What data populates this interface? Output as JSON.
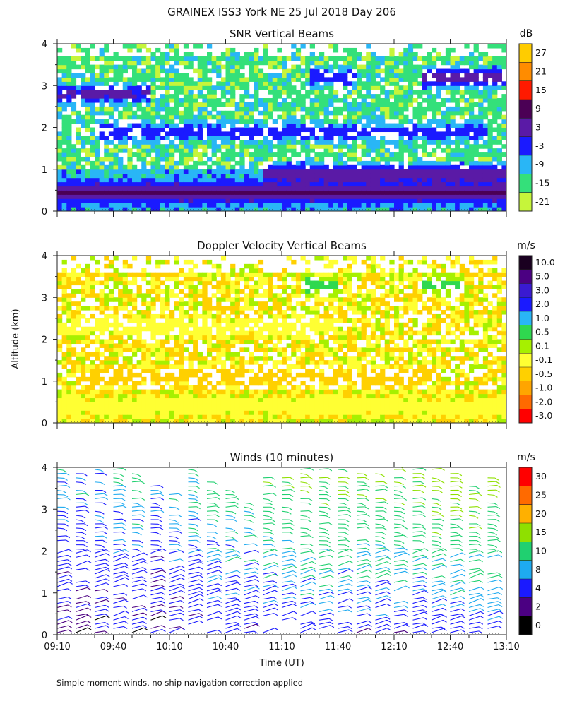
{
  "title": "GRAINEX ISS3 York NE  25 Jul 2018 Day 206",
  "footnote": "Simple moment winds, no ship navigation correction applied",
  "chart_data": [
    {
      "id": "snr",
      "type": "heatmap",
      "title": "SNR Vertical Beams",
      "xlabel": "",
      "ylabel": "",
      "xlim": [
        "09:10",
        "13:10"
      ],
      "ylim": [
        0,
        4
      ],
      "y_ticks": [
        "0",
        "1",
        "2",
        "3",
        "4"
      ],
      "colorbar": {
        "unit": "dB",
        "labels": [
          "27",
          "21",
          "15",
          "9",
          "3",
          "-3",
          "-9",
          "-15",
          "-21"
        ],
        "colors": [
          "#ffcc00",
          "#ff8c00",
          "#ff1a00",
          "#4b0055",
          "#5a1aa6",
          "#1a1aff",
          "#29b6f6",
          "#34e07a",
          "#c6f53a"
        ]
      },
      "layers": [
        {
          "altitude_km": 0.45,
          "snr_db": 6,
          "extent": [
            "09:10",
            "13:10"
          ]
        },
        {
          "altitude_km": 0.9,
          "snr_db": 6,
          "extent": [
            "11:00",
            "13:10"
          ]
        },
        {
          "altitude_km": 1.9,
          "snr_db": 0,
          "extent": [
            "09:30",
            "13:00"
          ]
        },
        {
          "altitude_km": 2.8,
          "snr_db": 3,
          "extent": [
            "09:10",
            "10:00"
          ]
        },
        {
          "altitude_km": 3.2,
          "snr_db": 0,
          "extent": [
            "11:25",
            "11:50"
          ]
        },
        {
          "altitude_km": 3.2,
          "snr_db": 6,
          "extent": [
            "12:25",
            "13:10"
          ]
        }
      ]
    },
    {
      "id": "doppler",
      "type": "heatmap",
      "title": "Doppler Velocity Vertical Beams",
      "xlabel": "",
      "ylabel": "Altitude (km)",
      "xlim": [
        "09:10",
        "13:10"
      ],
      "ylim": [
        0,
        4
      ],
      "y_ticks": [
        "0",
        "1",
        "2",
        "3",
        "4"
      ],
      "colorbar": {
        "unit": "m/s",
        "labels": [
          "10.0",
          "5.0",
          "3.0",
          "2.0",
          "1.0",
          "0.5",
          "0.1",
          "-0.1",
          "-0.5",
          "-1.0",
          "-2.0",
          "-3.0"
        ],
        "colors": [
          "#1a0020",
          "#4b0082",
          "#3a1ad1",
          "#1a1aff",
          "#29b6f6",
          "#2fd84f",
          "#a6f000",
          "#ffff33",
          "#ffd000",
          "#ffa500",
          "#ff6a00",
          "#ff0000"
        ]
      },
      "layers": [
        {
          "altitude_km": 0.4,
          "velocity_ms": -0.1,
          "extent": [
            "09:10",
            "13:10"
          ]
        },
        {
          "altitude_km": 1.1,
          "velocity_ms": -0.5,
          "extent": [
            "09:20",
            "12:30"
          ]
        },
        {
          "altitude_km": 2.3,
          "velocity_ms": -0.1,
          "extent": [
            "09:10",
            "11:40"
          ]
        },
        {
          "altitude_km": 3.3,
          "velocity_ms": 0.5,
          "extent": [
            "11:20",
            "11:40"
          ]
        },
        {
          "altitude_km": 3.3,
          "velocity_ms": 0.5,
          "extent": [
            "12:25",
            "12:45"
          ]
        }
      ]
    },
    {
      "id": "winds",
      "type": "scatter",
      "title": "Winds (10 minutes)",
      "xlabel": "Time (UT)",
      "ylabel": "",
      "xlim": [
        "09:10",
        "13:10"
      ],
      "ylim": [
        0,
        4
      ],
      "x_ticks": [
        "09:10",
        "09:40",
        "10:10",
        "10:40",
        "11:10",
        "11:40",
        "12:10",
        "12:40",
        "13:10"
      ],
      "y_ticks": [
        "0",
        "1",
        "2",
        "3",
        "4"
      ],
      "colorbar": {
        "unit": "m/s",
        "labels": [
          "30",
          "25",
          "20",
          "15",
          "10",
          "8",
          "4",
          "2",
          "0"
        ],
        "colors": [
          "#ff0000",
          "#ff6a00",
          "#ffb000",
          "#8fe000",
          "#20d070",
          "#1eaaf0",
          "#1a1aff",
          "#4b0082",
          "#000000"
        ]
      },
      "profiles_interval_min": 10,
      "profiles": [
        {
          "time": "09:10",
          "top_km": 4.1,
          "speed_ms": 6
        },
        {
          "time": "09:20",
          "top_km": 4.1,
          "speed_ms": 6
        },
        {
          "time": "09:30",
          "top_km": 4.1,
          "speed_ms": 6
        },
        {
          "time": "09:40",
          "top_km": 4.0,
          "speed_ms": 7
        },
        {
          "time": "09:50",
          "top_km": 4.2,
          "speed_ms": 7
        },
        {
          "time": "10:00",
          "top_km": 3.6,
          "speed_ms": 6
        },
        {
          "time": "10:10",
          "top_km": 3.4,
          "speed_ms": 7
        },
        {
          "time": "10:20",
          "top_km": 4.1,
          "speed_ms": 8
        },
        {
          "time": "10:30",
          "top_km": 3.7,
          "speed_ms": 9
        },
        {
          "time": "10:40",
          "top_km": 3.5,
          "speed_ms": 9
        },
        {
          "time": "10:50",
          "top_km": 3.2,
          "speed_ms": 9
        },
        {
          "time": "11:00",
          "top_km": 3.8,
          "speed_ms": 10
        },
        {
          "time": "11:10",
          "top_km": 3.8,
          "speed_ms": 10
        },
        {
          "time": "11:20",
          "top_km": 4.1,
          "speed_ms": 11
        },
        {
          "time": "11:30",
          "top_km": 4.1,
          "speed_ms": 11
        },
        {
          "time": "11:40",
          "top_km": 4.0,
          "speed_ms": 11
        },
        {
          "time": "11:50",
          "top_km": 3.9,
          "speed_ms": 11
        },
        {
          "time": "12:00",
          "top_km": 3.9,
          "speed_ms": 11
        },
        {
          "time": "12:10",
          "top_km": 4.1,
          "speed_ms": 11
        },
        {
          "time": "12:20",
          "top_km": 4.0,
          "speed_ms": 11
        },
        {
          "time": "12:30",
          "top_km": 4.0,
          "speed_ms": 12
        },
        {
          "time": "12:40",
          "top_km": 3.9,
          "speed_ms": 12
        },
        {
          "time": "12:50",
          "top_km": 3.6,
          "speed_ms": 12
        },
        {
          "time": "13:00",
          "top_km": 3.8,
          "speed_ms": 12
        }
      ]
    }
  ]
}
